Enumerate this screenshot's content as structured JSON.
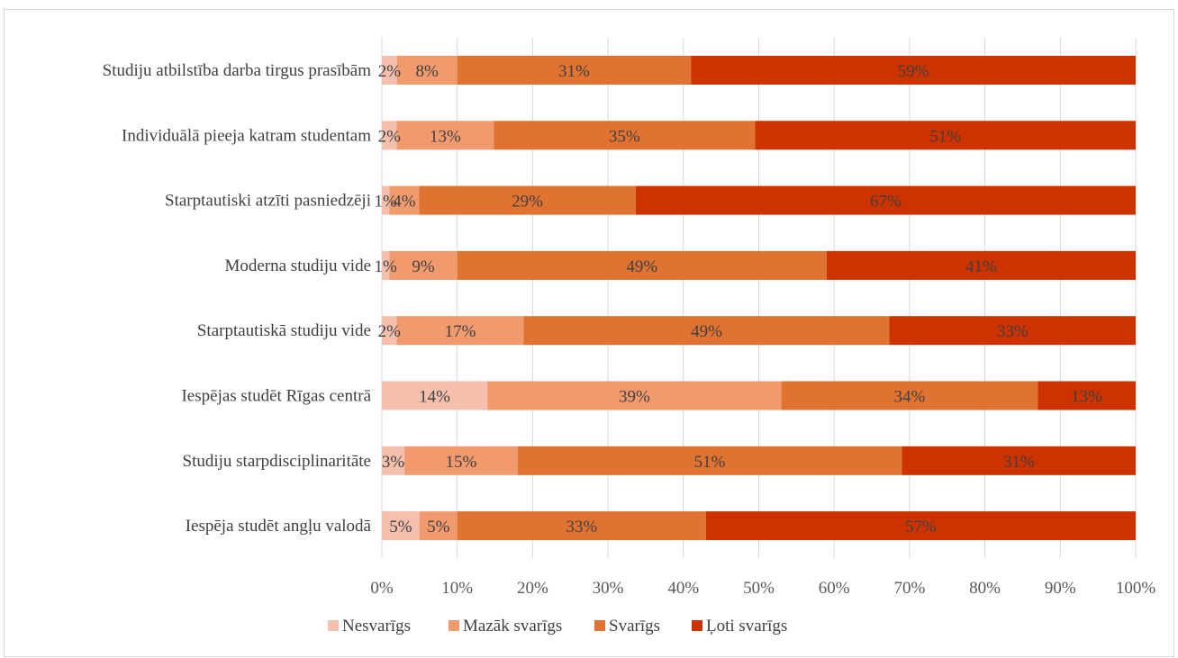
{
  "chart_data": {
    "type": "bar",
    "orientation": "horizontal",
    "stacked": "percent",
    "categories": [
      "Studiju atbilstība darba tirgus prasībām",
      "Individuālā pieeja katram studentam",
      "Starptautiski atzīti pasniedzēji",
      "Moderna studiju vide",
      "Starptautiskā studiju vide",
      "Iespējas studēt Rīgas centrā",
      "Studiju starpdisciplinaritāte",
      "Iespēja studēt angļu valodā"
    ],
    "series": [
      {
        "name": "Nesvarīgs",
        "color": "#f4bfac",
        "values": [
          2,
          2,
          1,
          1,
          2,
          14,
          3,
          5
        ]
      },
      {
        "name": "Mazāk svarīgs",
        "color": "#f19a6e",
        "values": [
          8,
          13,
          4,
          9,
          17,
          39,
          15,
          5
        ]
      },
      {
        "name": "Svarīgs",
        "color": "#e07332",
        "values": [
          31,
          35,
          29,
          49,
          49,
          34,
          51,
          33
        ]
      },
      {
        "name": "Ļoti svarīgs",
        "color": "#cc3300",
        "values": [
          59,
          51,
          67,
          41,
          33,
          13,
          31,
          57
        ]
      }
    ],
    "data_labels": [
      [
        "2%",
        "8%",
        "31%",
        "59%"
      ],
      [
        "2%",
        "13%",
        "35%",
        "51%"
      ],
      [
        "1%",
        "4%",
        "29%",
        "67%"
      ],
      [
        "1%",
        "9%",
        "49%",
        "41%"
      ],
      [
        "2%",
        "17%",
        "49%",
        "33%"
      ],
      [
        "14%",
        "39%",
        "34%",
        "13%"
      ],
      [
        "3%",
        "15%",
        "51%",
        "31%"
      ],
      [
        "5%",
        "5%",
        "33%",
        "57%"
      ]
    ],
    "xlim": [
      0,
      100
    ],
    "x_ticks": [
      "0%",
      "10%",
      "20%",
      "30%",
      "40%",
      "50%",
      "60%",
      "70%",
      "80%",
      "90%",
      "100%"
    ],
    "grid": true,
    "legend_position": "bottom"
  }
}
